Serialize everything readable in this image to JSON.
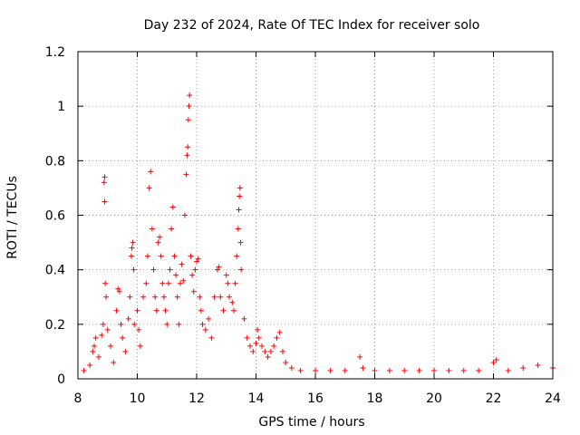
{
  "chart_data": {
    "type": "scatter",
    "title": "Day 232 of 2024, Rate Of TEC Index for receiver solo",
    "xlabel": "GPS time / hours",
    "ylabel": "ROTI / TECUs",
    "xlim": [
      8,
      24
    ],
    "ylim": [
      0,
      1.2
    ],
    "grid": true,
    "marker": "+",
    "color": "#ff0000",
    "x_ticks": [
      8,
      10,
      12,
      14,
      16,
      18,
      20,
      22,
      24
    ],
    "x_tick_labels": [
      "8",
      "10",
      "12",
      "14",
      "16",
      "18",
      "20",
      "22",
      "24"
    ],
    "y_ticks": [
      0,
      0.2,
      0.4,
      0.6,
      0.8,
      1.0,
      1.2
    ],
    "y_tick_labels": [
      "0",
      "0.2",
      "0.4",
      "0.6",
      "0.8",
      "1",
      "1.2"
    ],
    "series": [
      {
        "name": "ROTI",
        "points": [
          [
            8.2,
            0.03
          ],
          [
            8.4,
            0.05
          ],
          [
            8.5,
            0.1
          ],
          [
            8.55,
            0.12
          ],
          [
            8.6,
            0.15
          ],
          [
            8.7,
            0.08
          ],
          [
            8.8,
            0.16
          ],
          [
            8.85,
            0.2
          ],
          [
            8.88,
            0.72
          ],
          [
            8.9,
            0.74
          ],
          [
            8.9,
            0.65
          ],
          [
            8.92,
            0.35
          ],
          [
            8.95,
            0.3
          ],
          [
            9.0,
            0.18
          ],
          [
            9.1,
            0.12
          ],
          [
            9.2,
            0.06
          ],
          [
            9.3,
            0.25
          ],
          [
            9.35,
            0.33
          ],
          [
            9.4,
            0.32
          ],
          [
            9.45,
            0.2
          ],
          [
            9.5,
            0.15
          ],
          [
            9.6,
            0.1
          ],
          [
            9.7,
            0.22
          ],
          [
            9.75,
            0.3
          ],
          [
            9.8,
            0.45
          ],
          [
            9.82,
            0.48
          ],
          [
            9.85,
            0.5
          ],
          [
            9.88,
            0.4
          ],
          [
            9.9,
            0.2
          ],
          [
            10.0,
            0.25
          ],
          [
            10.05,
            0.18
          ],
          [
            10.1,
            0.12
          ],
          [
            10.2,
            0.3
          ],
          [
            10.3,
            0.35
          ],
          [
            10.35,
            0.45
          ],
          [
            10.4,
            0.7
          ],
          [
            10.45,
            0.76
          ],
          [
            10.5,
            0.55
          ],
          [
            10.55,
            0.4
          ],
          [
            10.6,
            0.3
          ],
          [
            10.65,
            0.25
          ],
          [
            10.7,
            0.5
          ],
          [
            10.75,
            0.52
          ],
          [
            10.8,
            0.45
          ],
          [
            10.85,
            0.35
          ],
          [
            10.9,
            0.3
          ],
          [
            10.95,
            0.25
          ],
          [
            11.0,
            0.2
          ],
          [
            11.05,
            0.35
          ],
          [
            11.1,
            0.4
          ],
          [
            11.15,
            0.55
          ],
          [
            11.2,
            0.63
          ],
          [
            11.25,
            0.45
          ],
          [
            11.3,
            0.38
          ],
          [
            11.35,
            0.3
          ],
          [
            11.4,
            0.2
          ],
          [
            11.45,
            0.35
          ],
          [
            11.5,
            0.42
          ],
          [
            11.55,
            0.36
          ],
          [
            11.6,
            0.6
          ],
          [
            11.65,
            0.75
          ],
          [
            11.68,
            0.82
          ],
          [
            11.7,
            0.85
          ],
          [
            11.72,
            0.95
          ],
          [
            11.74,
            1.0
          ],
          [
            11.76,
            1.04
          ],
          [
            11.8,
            0.45
          ],
          [
            11.85,
            0.38
          ],
          [
            11.9,
            0.32
          ],
          [
            11.95,
            0.4
          ],
          [
            12.0,
            0.43
          ],
          [
            12.05,
            0.44
          ],
          [
            12.1,
            0.3
          ],
          [
            12.15,
            0.25
          ],
          [
            12.2,
            0.2
          ],
          [
            12.3,
            0.18
          ],
          [
            12.4,
            0.22
          ],
          [
            12.5,
            0.15
          ],
          [
            12.6,
            0.3
          ],
          [
            12.7,
            0.4
          ],
          [
            12.75,
            0.41
          ],
          [
            12.8,
            0.3
          ],
          [
            12.9,
            0.25
          ],
          [
            13.0,
            0.38
          ],
          [
            13.05,
            0.35
          ],
          [
            13.1,
            0.3
          ],
          [
            13.2,
            0.28
          ],
          [
            13.25,
            0.25
          ],
          [
            13.3,
            0.35
          ],
          [
            13.35,
            0.45
          ],
          [
            13.4,
            0.55
          ],
          [
            13.42,
            0.62
          ],
          [
            13.44,
            0.67
          ],
          [
            13.46,
            0.7
          ],
          [
            13.48,
            0.5
          ],
          [
            13.5,
            0.4
          ],
          [
            13.6,
            0.22
          ],
          [
            13.7,
            0.15
          ],
          [
            13.8,
            0.12
          ],
          [
            13.9,
            0.1
          ],
          [
            14.0,
            0.13
          ],
          [
            14.05,
            0.18
          ],
          [
            14.1,
            0.15
          ],
          [
            14.2,
            0.12
          ],
          [
            14.3,
            0.1
          ],
          [
            14.4,
            0.08
          ],
          [
            14.5,
            0.1
          ],
          [
            14.6,
            0.12
          ],
          [
            14.7,
            0.15
          ],
          [
            14.8,
            0.17
          ],
          [
            14.9,
            0.1
          ],
          [
            15.0,
            0.06
          ],
          [
            15.2,
            0.04
          ],
          [
            15.5,
            0.03
          ],
          [
            16.0,
            0.03
          ],
          [
            16.5,
            0.03
          ],
          [
            17.0,
            0.03
          ],
          [
            17.5,
            0.08
          ],
          [
            17.6,
            0.04
          ],
          [
            18.0,
            0.03
          ],
          [
            18.5,
            0.03
          ],
          [
            19.0,
            0.03
          ],
          [
            19.5,
            0.03
          ],
          [
            20.0,
            0.03
          ],
          [
            20.5,
            0.03
          ],
          [
            21.0,
            0.03
          ],
          [
            21.5,
            0.03
          ],
          [
            22.0,
            0.06
          ],
          [
            22.1,
            0.07
          ],
          [
            22.5,
            0.03
          ],
          [
            23.0,
            0.04
          ],
          [
            23.5,
            0.05
          ],
          [
            24.0,
            0.04
          ]
        ]
      }
    ]
  }
}
